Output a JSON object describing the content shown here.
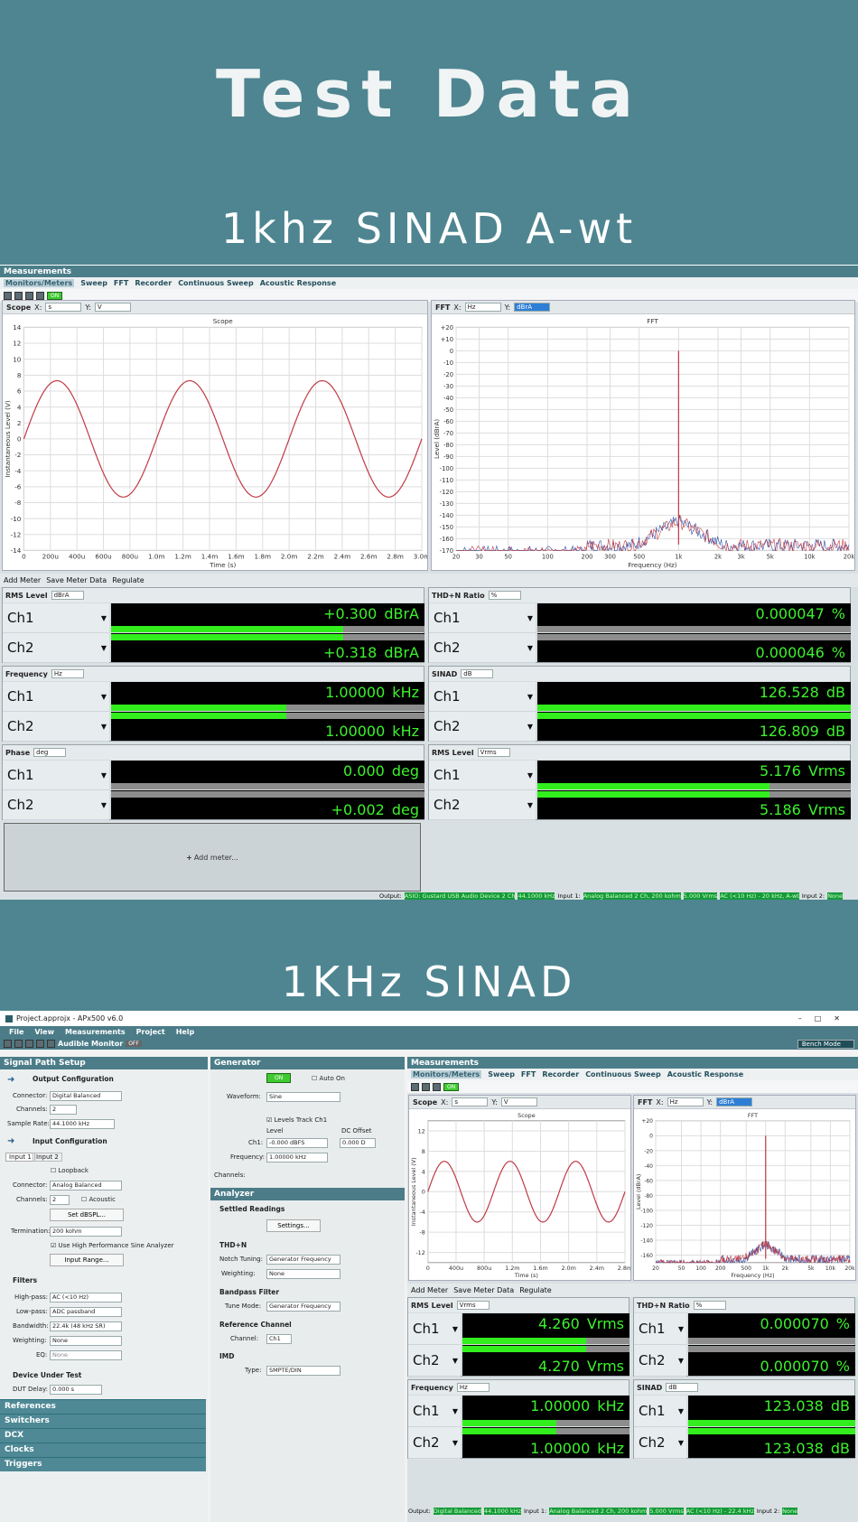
{
  "title": "Test Data",
  "sub1": "1khz SINAD A-wt",
  "sub2": "1KHz SINAD",
  "ss1": {
    "panel_title": "Measurements",
    "tabs": [
      "Monitors/Meters",
      "Sweep",
      "FFT",
      "Recorder",
      "Continuous Sweep",
      "Acoustic Response"
    ],
    "on": "ON",
    "scope": {
      "label": "Scope",
      "x": "s",
      "y": "V",
      "title": "Scope",
      "xlabel": "Time (s)",
      "ylabel": "Instantaneous Level (V)"
    },
    "fft": {
      "label": "FFT",
      "x": "Hz",
      "y": "dBrA",
      "title": "FFT",
      "xlabel": "Frequency (Hz)",
      "ylabel": "Level (dBrA)"
    },
    "meter_toolbar": {
      "add": "Add Meter",
      "save": "Save Meter Data",
      "regulate": "Regulate"
    },
    "meters": [
      {
        "name": "RMS Level",
        "unit_sel": "dBrA",
        "ch1": "+0.300",
        "ch2": "+0.318",
        "unit": "dBrA",
        "bar1": 0.74,
        "bar2": 0.74
      },
      {
        "name": "THD+N Ratio",
        "unit_sel": "%",
        "ch1": "0.000047",
        "ch2": "0.000046",
        "unit": "%",
        "bar1": 0.0,
        "bar2": 0.0
      },
      {
        "name": "Frequency",
        "unit_sel": "Hz",
        "ch1": "1.00000",
        "ch2": "1.00000",
        "unit": "kHz",
        "bar1": 0.56,
        "bar2": 0.56
      },
      {
        "name": "SINAD",
        "unit_sel": "dB",
        "ch1": "126.528",
        "ch2": "126.809",
        "unit": "dB",
        "bar1": 1.0,
        "bar2": 1.0
      },
      {
        "name": "Phase",
        "unit_sel": "deg",
        "ch1": "0.000",
        "ch2": "+0.002",
        "unit": "deg",
        "bar1": 0.0,
        "bar2": 0.0
      },
      {
        "name": "RMS Level",
        "unit_sel": "Vrms",
        "ch1": "5.176",
        "ch2": "5.186",
        "unit": "Vrms",
        "bar1": 0.74,
        "bar2": 0.74
      }
    ],
    "ch_labels": [
      "Ch1",
      "Ch2"
    ],
    "add_meter": "Add meter...",
    "status": {
      "output": "Output:",
      "out_val": "ASIO: Gustard USB Audio Device 2 Ch",
      "rate": "44.1000 kHz",
      "input1": "Input 1:",
      "in_val": "Analog Balanced 2 Ch, 200 kohm",
      "range": "5.000 Vrms",
      "filter": "AC (<10 Hz) - 20 kHz, A-wt",
      "input2": "Input 2:",
      "none": "None"
    }
  },
  "ss2": {
    "win_title": "Project.approjx - APx500 v6.0",
    "menu": [
      "File",
      "View",
      "Measurements",
      "Project",
      "Help"
    ],
    "audible": "Audible Monitor",
    "off": "OFF",
    "bench": "Bench Mode",
    "signal_path": "Signal Path Setup",
    "output_conf": "Output Configuration",
    "connector_lbl": "Connector:",
    "connector_out": "Digital Balanced",
    "channels_lbl": "Channels:",
    "channels_val": "2",
    "rate_lbl": "Sample Rate:",
    "rate_val": "44.1000 kHz",
    "input_conf": "Input Configuration",
    "input_tabs": [
      "Input 1",
      "Input 2"
    ],
    "loopback": "Loopback",
    "connector_in": "Analog Balanced",
    "acoustic": "Acoustic",
    "set_dbspl": "Set dBSPL...",
    "termination_lbl": "Termination:",
    "termination_val": "200 kohm",
    "high_perf": "Use High Performance Sine Analyzer",
    "input_range": "Input Range...",
    "filters": "Filters",
    "highpass_lbl": "High-pass:",
    "highpass_val": "AC (<10 Hz)",
    "lowpass_lbl": "Low-pass:",
    "lowpass_val": "ADC passband",
    "bandwidth_lbl": "Bandwidth:",
    "bandwidth_val": "22.4k (48 kHz SR)",
    "weighting_lbl": "Weighting:",
    "weighting_val": "None",
    "eq_lbl": "EQ:",
    "eq_val": "None",
    "dut": "Device Under Test",
    "dut_delay_lbl": "DUT Delay:",
    "dut_delay_val": "0.000 s",
    "nav": [
      "References",
      "Switchers",
      "DCX",
      "Clocks",
      "Triggers"
    ],
    "generator": "Generator",
    "on": "ON",
    "auto_on": "Auto On",
    "waveform_lbl": "Waveform:",
    "waveform_val": "Sine",
    "levels_track": "Levels Track Ch1",
    "level_lbl": "Level",
    "dc_lbl": "DC Offset",
    "ch1_lbl": "Ch1:",
    "ch1_level": "-0.000 dBFS",
    "ch1_dc": "0.000 D",
    "freq_lbl": "Frequency:",
    "freq_val": "1.00000 kHz",
    "gen_channels": "Channels:",
    "analyzer": "Analyzer",
    "settled": "Settled Readings",
    "settings": "Settings...",
    "thdn": "THD+N",
    "notch_lbl": "Notch Tuning:",
    "notch_val": "Generator Frequency",
    "weighting2_lbl": "Weighting:",
    "weighting2_val": "None",
    "bandpass": "Bandpass Filter",
    "tune_lbl": "Tune Mode:",
    "tune_val": "Generator Frequency",
    "refch": "Reference Channel",
    "channel_lbl": "Channel:",
    "channel_val": "Ch1",
    "imd": "IMD",
    "type_lbl": "Type:",
    "type_val": "SMPTE/DIN",
    "meas_title": "Measurements",
    "tabs": [
      "Monitors/Meters",
      "Sweep",
      "FFT",
      "Recorder",
      "Continuous Sweep",
      "Acoustic Response"
    ],
    "scope": {
      "label": "Scope",
      "x": "s",
      "y": "V",
      "title": "Scope",
      "xlabel": "Time (s)",
      "ylabel": "Instantaneous Level (V)"
    },
    "fft": {
      "label": "FFT",
      "x": "Hz",
      "y": "dBrA",
      "title": "FFT",
      "xlabel": "Frequency (Hz)",
      "ylabel": "Level (dBrA)"
    },
    "meter_toolbar": {
      "add": "Add Meter",
      "save": "Save Meter Data",
      "regulate": "Regulate"
    },
    "meters": [
      {
        "name": "RMS Level",
        "unit_sel": "Vrms",
        "ch1": "4.260",
        "ch2": "4.270",
        "unit": "Vrms",
        "bar1": 0.74,
        "bar2": 0.74
      },
      {
        "name": "THD+N Ratio",
        "unit_sel": "%",
        "ch1": "0.000070",
        "ch2": "0.000070",
        "unit": "%",
        "bar1": 0.0,
        "bar2": 0.0
      },
      {
        "name": "Frequency",
        "unit_sel": "Hz",
        "ch1": "1.00000",
        "ch2": "1.00000",
        "unit": "kHz",
        "bar1": 0.56,
        "bar2": 0.56
      },
      {
        "name": "SINAD",
        "unit_sel": "dB",
        "ch1": "123.038",
        "ch2": "123.038",
        "unit": "dB",
        "bar1": 1.0,
        "bar2": 1.0
      }
    ],
    "status": {
      "output": "Output:",
      "out_val": "Digital Balanced",
      "rate": "44.1000 kHz",
      "input1": "Input 1:",
      "in_val": "Analog Balanced 2 Ch, 200 kohm",
      "range": "5.000 Vrms",
      "filter": "AC (<10 Hz) - 22.4 kHz",
      "input2": "Input 2:",
      "none": "None"
    }
  },
  "chart_data": [
    {
      "type": "line",
      "title": "Scope",
      "xlabel": "Time (s)",
      "ylabel": "Instantaneous Level (V)",
      "xlim": [
        0,
        0.003
      ],
      "ylim": [
        -14,
        14
      ],
      "x_ticks": [
        "0",
        "200u",
        "400u",
        "600u",
        "800u",
        "1.0m",
        "1.2m",
        "1.4m",
        "1.6m",
        "1.8m",
        "2.0m",
        "2.2m",
        "2.4m",
        "2.6m",
        "2.8m",
        "3.0m"
      ],
      "y_ticks": [
        "14",
        "12",
        "10",
        "8",
        "6",
        "4",
        "2",
        "0",
        "-2",
        "-4",
        "-6",
        "-8",
        "-10",
        "-12",
        "-14"
      ],
      "series": [
        {
          "amplitude": 7.3,
          "frequency_hz": 1000,
          "color": "#c03a45"
        }
      ],
      "grid": true
    },
    {
      "type": "line",
      "title": "FFT",
      "xlabel": "Frequency (Hz)",
      "ylabel": "Level (dBrA)",
      "xscale": "log",
      "xlim": [
        20,
        20000
      ],
      "ylim": [
        -170,
        20
      ],
      "x_ticks": [
        "20",
        "30",
        "50",
        "100",
        "200",
        "300",
        "500",
        "1k",
        "2k",
        "3k",
        "5k",
        "10k",
        "20k"
      ],
      "y_ticks": [
        "+20",
        "+10",
        "0",
        "-10",
        "-20",
        "-30",
        "-40",
        "-50",
        "-60",
        "-70",
        "-80",
        "-90",
        "-100",
        "-110",
        "-120",
        "-130",
        "-140",
        "-150",
        "-160",
        "-170"
      ],
      "peak": {
        "x": 1000,
        "y": 0
      },
      "noise_floor": -160,
      "grid": true
    },
    {
      "type": "line",
      "title": "Scope",
      "xlabel": "Time (s)",
      "ylabel": "Instantaneous Level (V)",
      "xlim": [
        0,
        0.003
      ],
      "ylim": [
        -14,
        14
      ],
      "x_ticks": [
        "0",
        "400u",
        "800u",
        "1.2m",
        "1.6m",
        "2.0m",
        "2.4m",
        "2.8m"
      ],
      "y_ticks": [
        "12",
        "8",
        "4",
        "0",
        "-4",
        "-8",
        "-12"
      ],
      "series": [
        {
          "amplitude": 6.0,
          "frequency_hz": 1000,
          "color": "#c03a45"
        }
      ],
      "grid": true
    },
    {
      "type": "line",
      "title": "FFT",
      "xlabel": "Frequency (Hz)",
      "ylabel": "Level (dBrA)",
      "xscale": "log",
      "xlim": [
        20,
        20000
      ],
      "ylim": [
        -170,
        20
      ],
      "x_ticks": [
        "20",
        "50",
        "100",
        "200",
        "500",
        "1k",
        "2k",
        "5k",
        "10k",
        "20k"
      ],
      "y_ticks": [
        "+20",
        "0",
        "-20",
        "-40",
        "-60",
        "-80",
        "-100",
        "-120",
        "-140",
        "-160"
      ],
      "peak": {
        "x": 1000,
        "y": 0
      },
      "noise_floor": -160,
      "grid": true
    }
  ]
}
